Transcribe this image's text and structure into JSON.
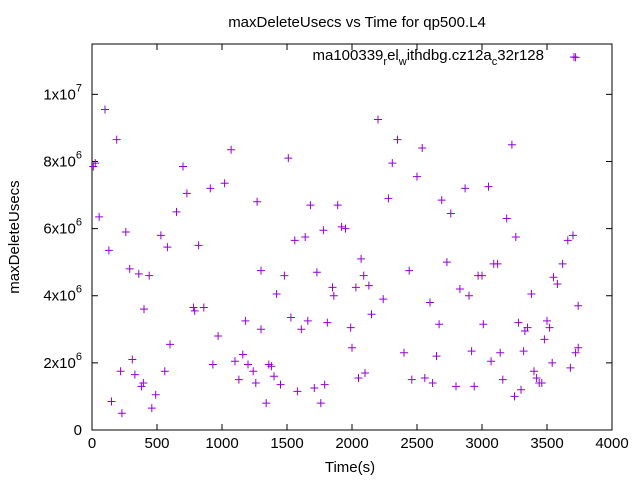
{
  "chart_data": {
    "type": "scatter",
    "title": "maxDeleteUsecs vs Time for qp500.L4",
    "xlabel": "Time(s)",
    "ylabel": "maxDeleteUsecs",
    "xlim": [
      0,
      4000
    ],
    "ylim": [
      0,
      11500000
    ],
    "x_ticks": [
      0,
      500,
      1000,
      1500,
      2000,
      2500,
      3000,
      3500,
      4000
    ],
    "x_tick_labels": [
      "0",
      "500",
      "1000",
      "1500",
      "2000",
      "2500",
      "3000",
      "3500",
      "4000"
    ],
    "y_ticks": [
      0,
      2000000,
      4000000,
      6000000,
      8000000,
      10000000
    ],
    "y_tick_labels": [
      {
        "base": "0",
        "exp": ""
      },
      {
        "base": "2x10",
        "exp": "6"
      },
      {
        "base": "4x10",
        "exp": "6"
      },
      {
        "base": "6x10",
        "exp": "6"
      },
      {
        "base": "8x10",
        "exp": "6"
      },
      {
        "base": "1x10",
        "exp": "7"
      }
    ],
    "grid": false,
    "legend_position": "top-right",
    "legend_parts": [
      {
        "t": "ma100339",
        "sub": false
      },
      {
        "t": "r",
        "sub": true
      },
      {
        "t": "el",
        "sub": false
      },
      {
        "t": "w",
        "sub": true
      },
      {
        "t": "ithdbg.cz12a",
        "sub": false
      },
      {
        "t": "c",
        "sub": true
      },
      {
        "t": "32r128",
        "sub": false
      }
    ],
    "marker": "+",
    "color": "#9400d3",
    "series": [
      {
        "points": [
          [
            10,
            7850000
          ],
          [
            25,
            7950000
          ],
          [
            55,
            6350000
          ],
          [
            100,
            9550000
          ],
          [
            130,
            5350000
          ],
          [
            150,
            850000
          ],
          [
            190,
            8650000
          ],
          [
            220,
            1750000
          ],
          [
            230,
            500000
          ],
          [
            260,
            5900000
          ],
          [
            290,
            4800000
          ],
          [
            310,
            2100000
          ],
          [
            330,
            1650000
          ],
          [
            360,
            4650000
          ],
          [
            380,
            1300000
          ],
          [
            395,
            1400000
          ],
          [
            400,
            3600000
          ],
          [
            440,
            4600000
          ],
          [
            460,
            650000
          ],
          [
            490,
            1050000
          ],
          [
            530,
            5800000
          ],
          [
            560,
            1750000
          ],
          [
            580,
            5450000
          ],
          [
            600,
            2550000
          ],
          [
            650,
            6500000
          ],
          [
            700,
            7850000
          ],
          [
            730,
            7050000
          ],
          [
            780,
            3650000
          ],
          [
            790,
            3550000
          ],
          [
            820,
            5500000
          ],
          [
            860,
            3650000
          ],
          [
            910,
            7200000
          ],
          [
            930,
            1950000
          ],
          [
            970,
            2800000
          ],
          [
            1020,
            7350000
          ],
          [
            1070,
            8350000
          ],
          [
            1100,
            2050000
          ],
          [
            1130,
            1500000
          ],
          [
            1160,
            2250000
          ],
          [
            1180,
            3250000
          ],
          [
            1200,
            1950000
          ],
          [
            1240,
            1750000
          ],
          [
            1260,
            1400000
          ],
          [
            1270,
            6800000
          ],
          [
            1300,
            4750000
          ],
          [
            1300,
            3000000
          ],
          [
            1340,
            800000
          ],
          [
            1360,
            1950000
          ],
          [
            1380,
            1900000
          ],
          [
            1400,
            1600000
          ],
          [
            1420,
            4050000
          ],
          [
            1450,
            1350000
          ],
          [
            1480,
            4600000
          ],
          [
            1510,
            8100000
          ],
          [
            1530,
            3350000
          ],
          [
            1560,
            5650000
          ],
          [
            1580,
            1150000
          ],
          [
            1610,
            3000000
          ],
          [
            1640,
            5750000
          ],
          [
            1660,
            3250000
          ],
          [
            1680,
            6700000
          ],
          [
            1710,
            1250000
          ],
          [
            1730,
            4700000
          ],
          [
            1760,
            800000
          ],
          [
            1780,
            5950000
          ],
          [
            1790,
            1350000
          ],
          [
            1810,
            3200000
          ],
          [
            1850,
            4250000
          ],
          [
            1860,
            4000000
          ],
          [
            1890,
            6700000
          ],
          [
            1920,
            6050000
          ],
          [
            1950,
            6000000
          ],
          [
            1990,
            3050000
          ],
          [
            2000,
            2450000
          ],
          [
            2030,
            4250000
          ],
          [
            2050,
            1550000
          ],
          [
            2070,
            5100000
          ],
          [
            2090,
            4600000
          ],
          [
            2100,
            1700000
          ],
          [
            2130,
            4300000
          ],
          [
            2150,
            3450000
          ],
          [
            2200,
            9250000
          ],
          [
            2240,
            3900000
          ],
          [
            2280,
            6900000
          ],
          [
            2310,
            7950000
          ],
          [
            2350,
            8650000
          ],
          [
            2400,
            2300000
          ],
          [
            2440,
            4750000
          ],
          [
            2460,
            1500000
          ],
          [
            2500,
            7550000
          ],
          [
            2540,
            8400000
          ],
          [
            2560,
            1550000
          ],
          [
            2600,
            3800000
          ],
          [
            2620,
            1400000
          ],
          [
            2650,
            2200000
          ],
          [
            2670,
            3150000
          ],
          [
            2690,
            6850000
          ],
          [
            2730,
            5000000
          ],
          [
            2760,
            6450000
          ],
          [
            2800,
            1300000
          ],
          [
            2830,
            4200000
          ],
          [
            2870,
            7200000
          ],
          [
            2900,
            4000000
          ],
          [
            2920,
            2350000
          ],
          [
            2940,
            1300000
          ],
          [
            2970,
            4600000
          ],
          [
            3000,
            4600000
          ],
          [
            3010,
            3150000
          ],
          [
            3050,
            7250000
          ],
          [
            3070,
            2050000
          ],
          [
            3090,
            4950000
          ],
          [
            3120,
            4950000
          ],
          [
            3140,
            2300000
          ],
          [
            3160,
            1500000
          ],
          [
            3190,
            6300000
          ],
          [
            3230,
            8500000
          ],
          [
            3250,
            1000000
          ],
          [
            3260,
            5750000
          ],
          [
            3280,
            3200000
          ],
          [
            3300,
            1200000
          ],
          [
            3320,
            2350000
          ],
          [
            3330,
            2950000
          ],
          [
            3350,
            3050000
          ],
          [
            3380,
            4050000
          ],
          [
            3400,
            1750000
          ],
          [
            3420,
            1550000
          ],
          [
            3440,
            1400000
          ],
          [
            3460,
            1400000
          ],
          [
            3480,
            2700000
          ],
          [
            3500,
            3250000
          ],
          [
            3520,
            3050000
          ],
          [
            3540,
            2000000
          ],
          [
            3550,
            4550000
          ],
          [
            3580,
            4350000
          ],
          [
            3620,
            4950000
          ],
          [
            3660,
            5650000
          ],
          [
            3680,
            1850000
          ],
          [
            3700,
            5800000
          ],
          [
            3720,
            11100000
          ],
          [
            3720,
            2300000
          ],
          [
            3740,
            2450000
          ],
          [
            3740,
            3700000
          ]
        ]
      }
    ]
  }
}
